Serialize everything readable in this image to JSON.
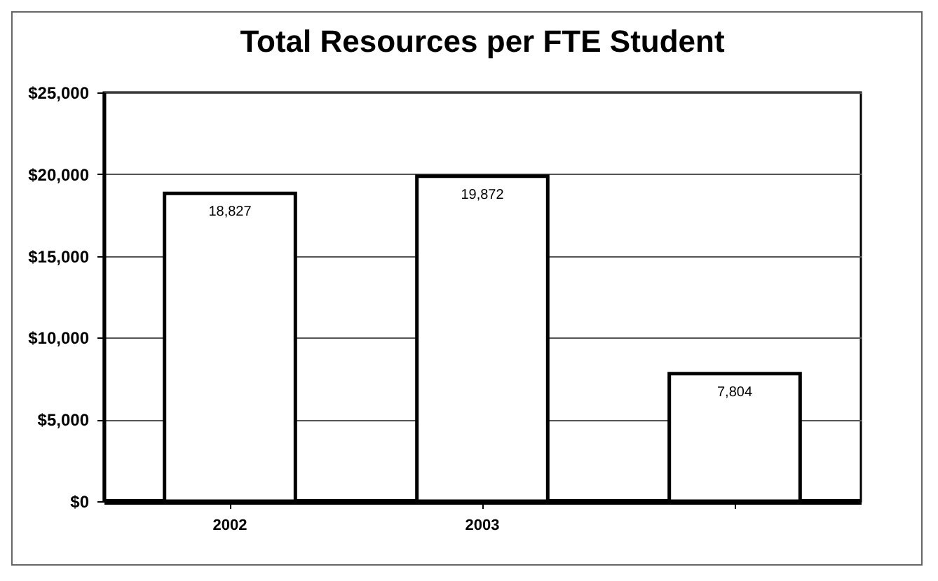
{
  "chart_data": {
    "type": "bar",
    "title": "Total Resources per FTE Student",
    "categories": [
      "2002",
      "2003",
      null
    ],
    "values": [
      18827,
      19872,
      7804
    ],
    "color": "#ffffff",
    "ylim": [
      0,
      25000
    ],
    "yticks": [
      {
        "value": 0,
        "label": "$0"
      },
      {
        "value": 5000,
        "label": "$5,000"
      },
      {
        "value": 10000,
        "label": "$10,000"
      },
      {
        "value": 15000,
        "label": "$15,000"
      },
      {
        "value": 20000,
        "label": "$20,000"
      },
      {
        "value": 25000,
        "label": "$25,000"
      }
    ],
    "value_labels": [
      "18,827",
      "19,872",
      "7,804"
    ],
    "grid": true
  }
}
